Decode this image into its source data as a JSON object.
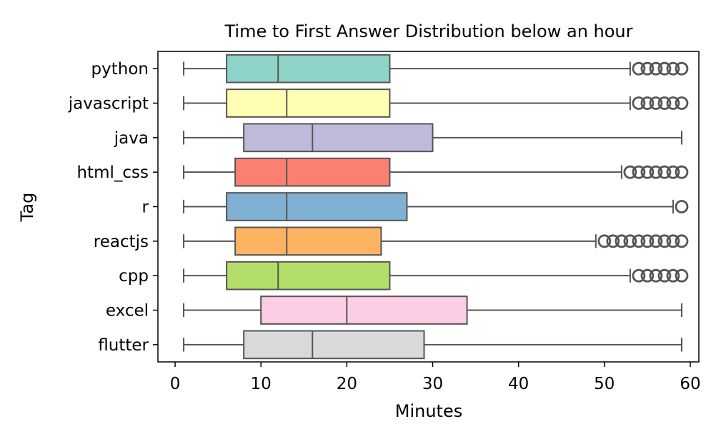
{
  "chart_data": {
    "type": "boxplot",
    "orientation": "horizontal",
    "title": "Time to First Answer Distribution below an hour",
    "xlabel": "Minutes",
    "ylabel": "Tag",
    "xlim": [
      -2,
      61
    ],
    "xticks": [
      0,
      10,
      20,
      30,
      40,
      50,
      60
    ],
    "grid": false,
    "categories": [
      "python",
      "javascript",
      "java",
      "html_css",
      "r",
      "reactjs",
      "cpp",
      "excel",
      "flutter"
    ],
    "colors": [
      "#8dd3c7",
      "#ffffb3",
      "#bebada",
      "#fb8072",
      "#80b1d3",
      "#fdb462",
      "#b3de69",
      "#fccde5",
      "#d9d9d9"
    ],
    "series": [
      {
        "category": "python",
        "min": 1,
        "q1": 6,
        "median": 12,
        "q3": 25,
        "max": 53,
        "outliers": [
          54,
          55,
          56,
          57,
          58,
          59
        ]
      },
      {
        "category": "javascript",
        "min": 1,
        "q1": 6,
        "median": 13,
        "q3": 25,
        "max": 53,
        "outliers": [
          54,
          55,
          56,
          57,
          58,
          59
        ]
      },
      {
        "category": "java",
        "min": 1,
        "q1": 8,
        "median": 16,
        "q3": 30,
        "max": 59,
        "outliers": []
      },
      {
        "category": "html_css",
        "min": 1,
        "q1": 7,
        "median": 13,
        "q3": 25,
        "max": 52,
        "outliers": [
          53,
          54,
          55,
          56,
          57,
          58,
          59
        ]
      },
      {
        "category": "r",
        "min": 1,
        "q1": 6,
        "median": 13,
        "q3": 27,
        "max": 58,
        "outliers": [
          59
        ]
      },
      {
        "category": "reactjs",
        "min": 1,
        "q1": 7,
        "median": 13,
        "q3": 24,
        "max": 49,
        "outliers": [
          50,
          51,
          52,
          53,
          54,
          55,
          56,
          57,
          58,
          59
        ]
      },
      {
        "category": "cpp",
        "min": 1,
        "q1": 6,
        "median": 12,
        "q3": 25,
        "max": 53,
        "outliers": [
          54,
          55,
          56,
          57,
          58,
          59
        ]
      },
      {
        "category": "excel",
        "min": 1,
        "q1": 10,
        "median": 20,
        "q3": 34,
        "max": 59,
        "outliers": []
      },
      {
        "category": "flutter",
        "min": 1,
        "q1": 8,
        "median": 16,
        "q3": 29,
        "max": 59,
        "outliers": []
      }
    ]
  }
}
